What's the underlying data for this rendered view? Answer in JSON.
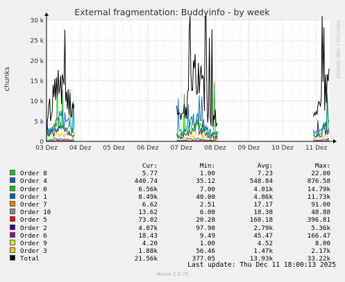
{
  "chart_data": {
    "type": "line",
    "title": "External fragmentation: Buddyinfo - by week",
    "ylabel": "chunks",
    "watermark": "RRDTOOL / TOBI OETIKER",
    "ylim": [
      0,
      30000
    ],
    "yticks": [
      {
        "v": 0,
        "label": "0"
      },
      {
        "v": 5000,
        "label": "5 k"
      },
      {
        "v": 10000,
        "label": "10 k"
      },
      {
        "v": 15000,
        "label": "15 k"
      },
      {
        "v": 20000,
        "label": "20 k"
      },
      {
        "v": 25000,
        "label": "25 k"
      },
      {
        "v": 30000,
        "label": "30 k"
      }
    ],
    "xlim": [
      0,
      8.4
    ],
    "xticks": [
      {
        "v": 0,
        "label": "03 Dez"
      },
      {
        "v": 1,
        "label": "04 Dez"
      },
      {
        "v": 2,
        "label": "05 Dez"
      },
      {
        "v": 3,
        "label": "06 Dez"
      },
      {
        "v": 4,
        "label": "07 Dez"
      },
      {
        "v": 5,
        "label": "08 Dez"
      },
      {
        "v": 6,
        "label": "09 Dez"
      },
      {
        "v": 7,
        "label": "10 Dez"
      },
      {
        "v": 8,
        "label": "11 Dez"
      }
    ],
    "segments": [
      [
        -0.18,
        0.82
      ],
      [
        3.86,
        5.08
      ],
      [
        7.92,
        8.38
      ]
    ],
    "series": [
      {
        "name": "Order 8",
        "color": "#00cc00",
        "cur": "5.77",
        "min": "1.00",
        "avg": "7.23",
        "max": "22.00",
        "typical": 7,
        "peak": 22
      },
      {
        "name": "Order 4",
        "color": "#0066b3",
        "cur": "440.74",
        "min": "35.12",
        "avg": "548.84",
        "max": "876.58",
        "typical": 550,
        "peak": 877
      },
      {
        "name": "Order 0",
        "color": "#00cc00",
        "cur": "6.56k",
        "min": "7.00",
        "avg": "4.01k",
        "max": "14.79k",
        "typical": 4010,
        "peak": 14790
      },
      {
        "name": "Order 1",
        "color": "#0066b3",
        "cur": "8.49k",
        "min": "40.00",
        "avg": "4.86k",
        "max": "11.73k",
        "typical": 4860,
        "peak": 11730
      },
      {
        "name": "Order 7",
        "color": "#ff8000",
        "cur": "6.62",
        "min": "2.51",
        "avg": "17.17",
        "max": "91.00",
        "typical": 17,
        "peak": 91
      },
      {
        "name": "Order 10",
        "color": "#888888",
        "cur": "13.62",
        "min": "6.00",
        "avg": "18.38",
        "max": "48.88",
        "typical": 18,
        "peak": 49
      },
      {
        "name": "Order 5",
        "color": "#ff0000",
        "cur": "73.02",
        "min": "20.28",
        "avg": "160.18",
        "max": "396.81",
        "typical": 160,
        "peak": 397
      },
      {
        "name": "Order 2",
        "color": "#330099",
        "cur": "4.07k",
        "min": "97.90",
        "avg": "2.79k",
        "max": "5.36k",
        "typical": 2790,
        "peak": 5360
      },
      {
        "name": "Order 6",
        "color": "#990099",
        "cur": "18.43",
        "min": "9.49",
        "avg": "45.47",
        "max": "166.47",
        "typical": 45,
        "peak": 166
      },
      {
        "name": "Order 9",
        "color": "#ccff00",
        "cur": "4.20",
        "min": "1.00",
        "avg": "4.52",
        "max": "8.00",
        "typical": 4.5,
        "peak": 8
      },
      {
        "name": "Order 3",
        "color": "#ffcc00",
        "cur": "1.88k",
        "min": "56.46",
        "avg": "1.47k",
        "max": "2.17k",
        "typical": 1470,
        "peak": 2170
      },
      {
        "name": "Total",
        "color": "#000000",
        "cur": "21.56k",
        "min": "377.05",
        "avg": "13.93k",
        "max": "33.22k",
        "typical": 13930,
        "peak": 33220
      }
    ]
  },
  "legend_headers": {
    "cur": "Cur:",
    "min": "Min:",
    "avg": "Avg:",
    "max": "Max:"
  },
  "last_update": "Last update: Thu Dec 11 18:00:13 2025",
  "version": "Munin 2.0.73"
}
